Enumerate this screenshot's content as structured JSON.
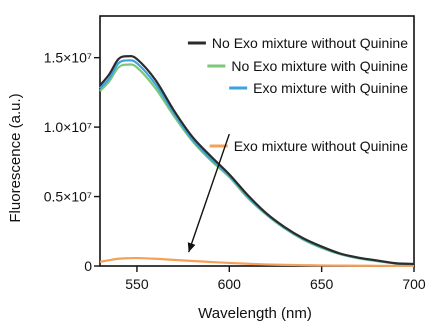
{
  "chart_data": {
    "type": "line",
    "title": "",
    "xlabel": "Wavelength (nm)",
    "ylabel": "Fluorescence (a.u.)",
    "xlim": [
      530,
      700
    ],
    "ylim": [
      0,
      18000000
    ],
    "x_ticks": [
      550,
      600,
      650,
      700
    ],
    "x_tick_labels": [
      "550",
      "600",
      "650",
      "700"
    ],
    "y_ticks": [
      0,
      5000000,
      10000000,
      15000000
    ],
    "y_tick_labels": [
      "0",
      "0.5×10⁷",
      "1.0×10⁷",
      "1.5×10⁷"
    ],
    "grid": false,
    "legend_position": "top-right",
    "x": [
      530,
      535,
      540,
      545,
      550,
      560,
      570,
      580,
      590,
      600,
      610,
      620,
      630,
      640,
      650,
      660,
      670,
      680,
      690,
      700
    ],
    "series": [
      {
        "name": "No Exo mixture without Quinine",
        "color": "#2b2b2b",
        "values": [
          13000000,
          13800000,
          14900000,
          15100000,
          14900000,
          13400000,
          11200000,
          9300000,
          7900000,
          6600000,
          5100000,
          3800000,
          2800000,
          2000000,
          1400000,
          900000,
          600000,
          400000,
          200000,
          150000
        ]
      },
      {
        "name": "No Exo mixture with Quinine",
        "color": "#7cc77a",
        "values": [
          12600000,
          13300000,
          14300000,
          14500000,
          14300000,
          12800000,
          10800000,
          9000000,
          7600000,
          6400000,
          4900000,
          3700000,
          2700000,
          1900000,
          1300000,
          850000,
          550000,
          350000,
          180000,
          120000
        ]
      },
      {
        "name": "Exo mixture with Quinine",
        "color": "#3ca3dc",
        "values": [
          12800000,
          13500000,
          14600000,
          14800000,
          14600000,
          13100000,
          11000000,
          9100000,
          7700000,
          6500000,
          5000000,
          3750000,
          2750000,
          1950000,
          1350000,
          880000,
          580000,
          380000,
          190000,
          130000
        ]
      },
      {
        "name": "Exo mixture without Quinine",
        "color": "#f5a05a",
        "values": [
          300000,
          420000,
          520000,
          560000,
          570000,
          520000,
          440000,
          360000,
          290000,
          220000,
          160000,
          110000,
          80000,
          60000,
          40000,
          30000,
          20000,
          15000,
          10000,
          8000
        ]
      }
    ],
    "annotation": {
      "text": "Exo mixture without Quinine",
      "arrow_from": [
        600,
        9500000
      ],
      "arrow_to": [
        578,
        1000000
      ]
    }
  }
}
